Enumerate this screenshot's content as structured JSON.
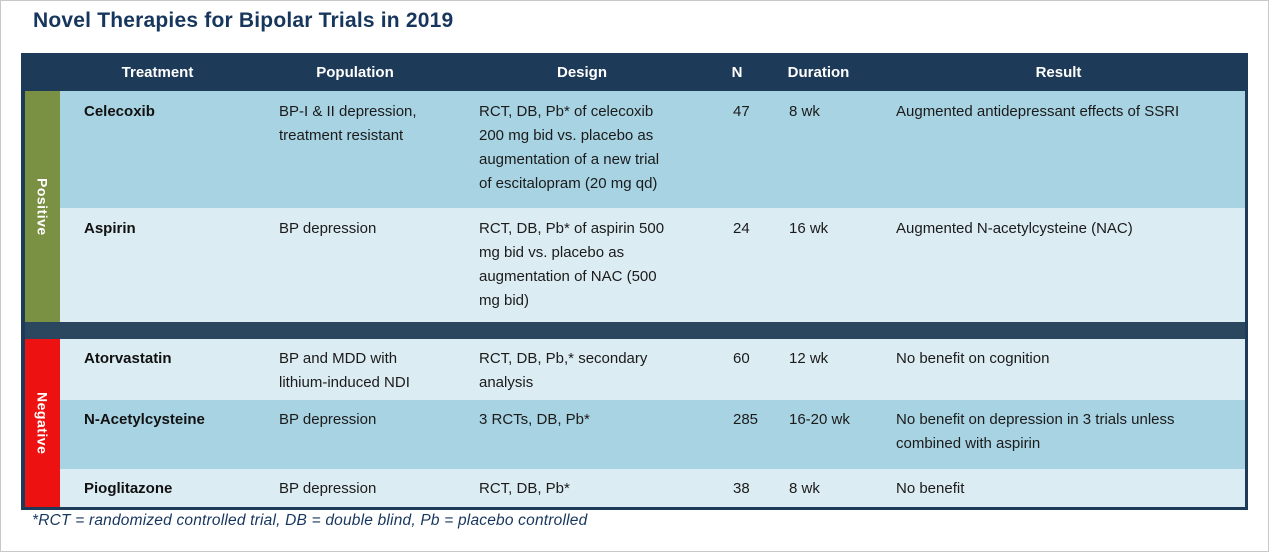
{
  "title": "Novel Therapies for Bipolar Trials in 2019",
  "footnote": "*RCT = randomized controlled trial, DB = double blind, Pb = placebo controlled",
  "colors": {
    "header_navy": "#1d3a58",
    "divider_navy": "#2b465f",
    "row_dark_blue": "#a8d3e2",
    "row_light_blue": "#dcecf3",
    "positive_green": "#7a9043",
    "negative_red": "#ee1111",
    "title_navy": "#17365d"
  },
  "table": {
    "columns": {
      "treatment": "Treatment",
      "population": "Population",
      "design": "Design",
      "n": "N",
      "duration": "Duration",
      "result": "Result"
    },
    "sections": [
      {
        "label": "Positive",
        "rows": [
          {
            "treatment": "Celecoxib",
            "population": "BP-I & II depression,\ntreatment resistant",
            "design": "RCT, DB, Pb* of celecoxib\n200 mg bid vs. placebo as\naugmentation of a new trial\nof escitalopram (20 mg qd)",
            "n": "47",
            "duration": "8 wk",
            "result": "Augmented antidepressant effects of SSRI"
          },
          {
            "treatment": "Aspirin",
            "population": "BP depression",
            "design": "RCT, DB, Pb* of aspirin 500\nmg bid vs. placebo as\naugmentation of NAC (500\nmg bid)",
            "n": "24",
            "duration": "16 wk",
            "result": "Augmented N-acetylcysteine (NAC)"
          }
        ]
      },
      {
        "label": "Negative",
        "rows": [
          {
            "treatment": "Atorvastatin",
            "population": "BP and MDD with\nlithium-induced NDI",
            "design": "RCT, DB, Pb,* secondary\nanalysis",
            "n": "60",
            "duration": "12 wk",
            "result": "No benefit on cognition"
          },
          {
            "treatment": "N-Acetylcysteine",
            "population": "BP depression",
            "design": "3 RCTs, DB, Pb*",
            "n": "285",
            "duration": "16-20 wk",
            "result": "No benefit on depression in 3 trials unless\ncombined with aspirin"
          },
          {
            "treatment": "Pioglitazone",
            "population": "BP depression",
            "design": "RCT, DB, Pb*",
            "n": "38",
            "duration": "8 wk",
            "result": "No benefit"
          }
        ]
      }
    ]
  }
}
